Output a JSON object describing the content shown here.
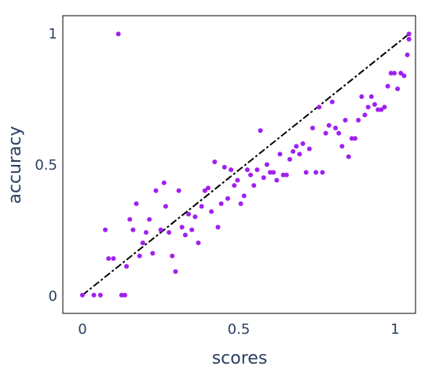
{
  "chart_data": {
    "type": "scatter",
    "title": "",
    "xlabel": "scores",
    "ylabel": "accuracy",
    "xlim": [
      -0.06,
      1.02
    ],
    "ylim": [
      -0.07,
      1.07
    ],
    "xticks": [
      0,
      0.5,
      1
    ],
    "xtick_labels": [
      "0",
      "0.5",
      "1"
    ],
    "yticks": [
      0,
      0.5,
      1
    ],
    "ytick_labels": [
      "0",
      "0.5",
      "1"
    ],
    "grid": false,
    "marker_color": "#a020f0",
    "reference_line": {
      "style": "dash-dot",
      "color": "#000000",
      "x": [
        0,
        1
      ],
      "y": [
        0,
        1
      ]
    },
    "points": [
      [
        0.0,
        0.0
      ],
      [
        0.035,
        0.0
      ],
      [
        0.055,
        0.0
      ],
      [
        0.07,
        0.25
      ],
      [
        0.08,
        0.14
      ],
      [
        0.095,
        0.14
      ],
      [
        0.11,
        1.0
      ],
      [
        0.12,
        0.0
      ],
      [
        0.13,
        0.0
      ],
      [
        0.135,
        0.11
      ],
      [
        0.145,
        0.29
      ],
      [
        0.155,
        0.25
      ],
      [
        0.165,
        0.35
      ],
      [
        0.175,
        0.15
      ],
      [
        0.185,
        0.2
      ],
      [
        0.195,
        0.24
      ],
      [
        0.205,
        0.29
      ],
      [
        0.215,
        0.16
      ],
      [
        0.225,
        0.4
      ],
      [
        0.24,
        0.25
      ],
      [
        0.25,
        0.43
      ],
      [
        0.255,
        0.34
      ],
      [
        0.265,
        0.24
      ],
      [
        0.275,
        0.15
      ],
      [
        0.285,
        0.09
      ],
      [
        0.295,
        0.4
      ],
      [
        0.305,
        0.26
      ],
      [
        0.315,
        0.23
      ],
      [
        0.325,
        0.31
      ],
      [
        0.335,
        0.25
      ],
      [
        0.345,
        0.3
      ],
      [
        0.355,
        0.2
      ],
      [
        0.365,
        0.34
      ],
      [
        0.375,
        0.4
      ],
      [
        0.385,
        0.41
      ],
      [
        0.395,
        0.32
      ],
      [
        0.405,
        0.51
      ],
      [
        0.415,
        0.26
      ],
      [
        0.425,
        0.35
      ],
      [
        0.435,
        0.49
      ],
      [
        0.445,
        0.37
      ],
      [
        0.455,
        0.48
      ],
      [
        0.465,
        0.42
      ],
      [
        0.475,
        0.44
      ],
      [
        0.485,
        0.35
      ],
      [
        0.495,
        0.38
      ],
      [
        0.505,
        0.48
      ],
      [
        0.515,
        0.46
      ],
      [
        0.525,
        0.42
      ],
      [
        0.535,
        0.48
      ],
      [
        0.545,
        0.63
      ],
      [
        0.555,
        0.45
      ],
      [
        0.565,
        0.5
      ],
      [
        0.575,
        0.47
      ],
      [
        0.585,
        0.47
      ],
      [
        0.595,
        0.44
      ],
      [
        0.605,
        0.54
      ],
      [
        0.615,
        0.46
      ],
      [
        0.625,
        0.46
      ],
      [
        0.635,
        0.52
      ],
      [
        0.645,
        0.55
      ],
      [
        0.655,
        0.57
      ],
      [
        0.665,
        0.54
      ],
      [
        0.675,
        0.58
      ],
      [
        0.685,
        0.47
      ],
      [
        0.695,
        0.56
      ],
      [
        0.705,
        0.64
      ],
      [
        0.715,
        0.47
      ],
      [
        0.725,
        0.72
      ],
      [
        0.735,
        0.47
      ],
      [
        0.745,
        0.62
      ],
      [
        0.755,
        0.65
      ],
      [
        0.765,
        0.74
      ],
      [
        0.775,
        0.64
      ],
      [
        0.785,
        0.62
      ],
      [
        0.795,
        0.57
      ],
      [
        0.805,
        0.67
      ],
      [
        0.815,
        0.53
      ],
      [
        0.825,
        0.6
      ],
      [
        0.835,
        0.6
      ],
      [
        0.845,
        0.67
      ],
      [
        0.855,
        0.76
      ],
      [
        0.865,
        0.69
      ],
      [
        0.875,
        0.72
      ],
      [
        0.885,
        0.76
      ],
      [
        0.895,
        0.73
      ],
      [
        0.905,
        0.71
      ],
      [
        0.915,
        0.71
      ],
      [
        0.925,
        0.72
      ],
      [
        0.935,
        0.8
      ],
      [
        0.945,
        0.85
      ],
      [
        0.955,
        0.85
      ],
      [
        0.965,
        0.79
      ],
      [
        0.975,
        0.85
      ],
      [
        0.985,
        0.84
      ],
      [
        0.995,
        0.92
      ],
      [
        1.0,
        0.98
      ],
      [
        1.0,
        1.0
      ]
    ]
  }
}
